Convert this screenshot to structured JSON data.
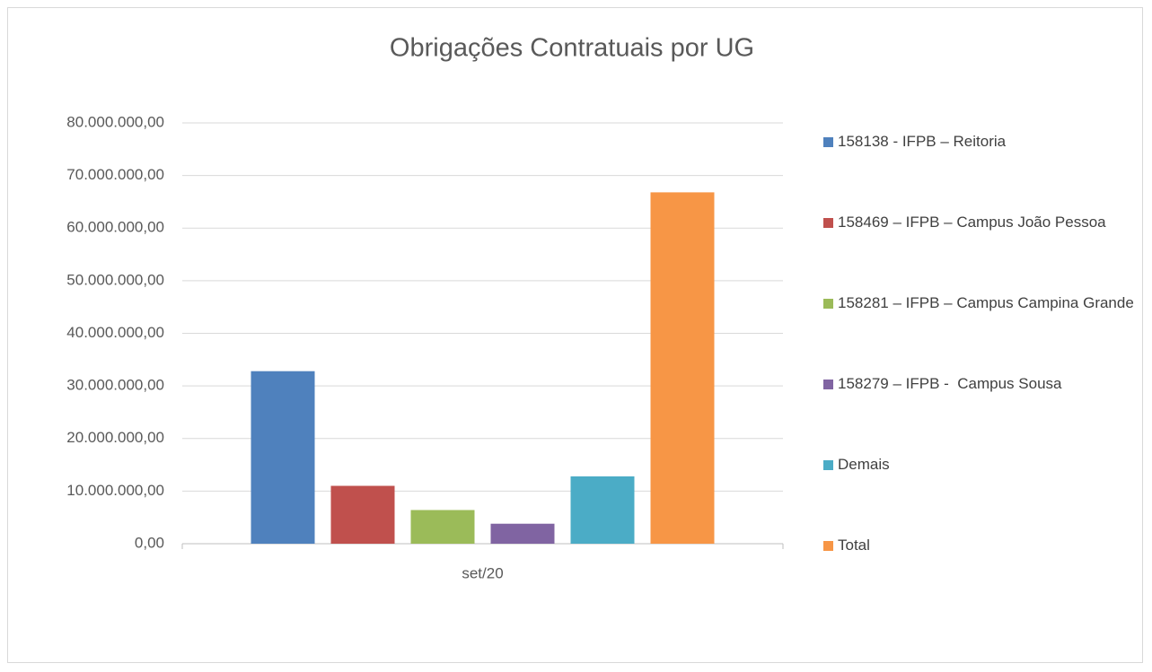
{
  "chart_data": {
    "type": "bar",
    "title": "Obrigações Contratuais por UG",
    "categories": [
      "set/20"
    ],
    "series": [
      {
        "name": "158138 - IFPB – Reitoria",
        "color": "#4f81bd",
        "values": [
          32800000
        ]
      },
      {
        "name": "158469 – IFPB – Campus João Pessoa",
        "color": "#c0504d",
        "values": [
          11000000
        ]
      },
      {
        "name": "158281 – IFPB – Campus Campina Grande",
        "color": "#9bbb59",
        "values": [
          6400000
        ]
      },
      {
        "name": "158279 – IFPB -  Campus Sousa",
        "color": "#8064a2",
        "values": [
          3800000
        ]
      },
      {
        "name": "Demais",
        "color": "#4bacc6",
        "values": [
          12800000
        ]
      },
      {
        "name": "Total",
        "color": "#f79646",
        "values": [
          66800000
        ]
      }
    ],
    "ylim": [
      0,
      80000000
    ],
    "yticks": [
      {
        "value": 0,
        "label": "0,00"
      },
      {
        "value": 10000000,
        "label": "10.000.000,00"
      },
      {
        "value": 20000000,
        "label": "20.000.000,00"
      },
      {
        "value": 30000000,
        "label": "30.000.000,00"
      },
      {
        "value": 40000000,
        "label": "40.000.000,00"
      },
      {
        "value": 50000000,
        "label": "50.000.000,00"
      },
      {
        "value": 60000000,
        "label": "60.000.000,00"
      },
      {
        "value": 70000000,
        "label": "70.000.000,00"
      },
      {
        "value": 80000000,
        "label": "80.000.000,00"
      }
    ],
    "grid": true,
    "legend": "right"
  }
}
